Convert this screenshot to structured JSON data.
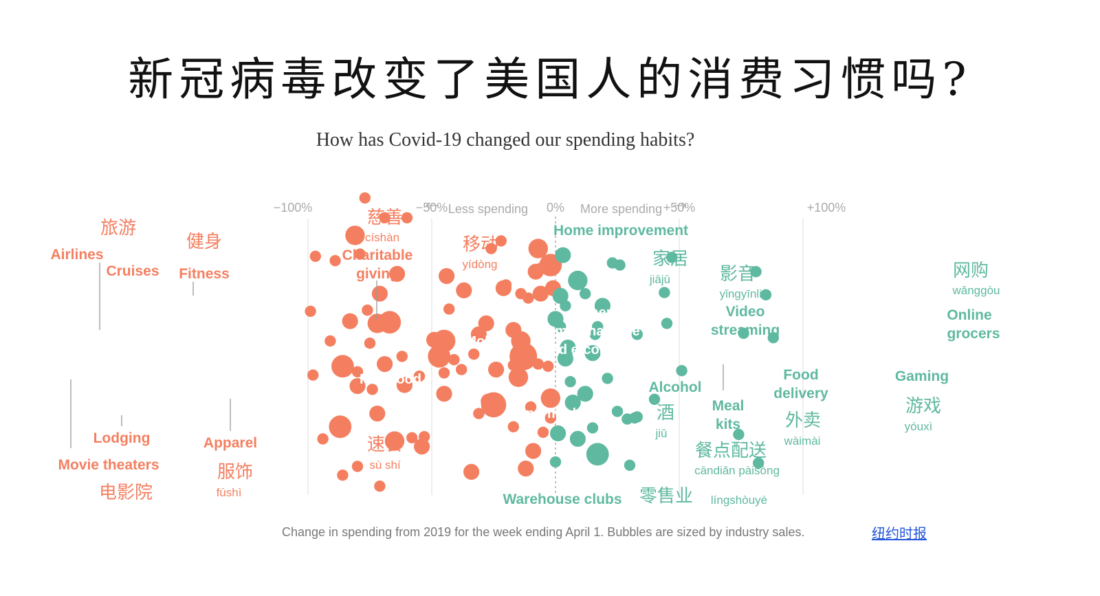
{
  "title": "新冠病毒改变了美国人的消费习惯吗?",
  "subtitle": "How has Covid-19 changed our spending habits?",
  "caption": "Change in spending from 2019 for the week ending April 1. Bubbles are sized by industry sales.",
  "source_link": "纽约时报",
  "colors": {
    "decline": "#f47f60",
    "growth": "#5fb9a0",
    "grid": "#e2e2e2",
    "zero_line": "#aaaaaa"
  },
  "chart_data": {
    "type": "scatter",
    "x_axis": {
      "range": [
        -100,
        100
      ],
      "ticks": [
        "−100%",
        "−50%",
        "0%",
        "+50%",
        "+100%"
      ],
      "tick_values": [
        -100,
        -50,
        0,
        50,
        100
      ]
    },
    "direction_labels": {
      "less": "Less spending",
      "more": "More spending"
    },
    "labels": [
      {
        "en": "Airlines",
        "cn": "旅游",
        "pinyin": ""
      },
      {
        "en": "Cruises",
        "cn": "",
        "pinyin": ""
      },
      {
        "en": "Fitness",
        "cn": "健身",
        "pinyin": ""
      },
      {
        "en": "Lodging",
        "cn": "",
        "pinyin": ""
      },
      {
        "en": "Movie theaters",
        "cn": "电影院",
        "pinyin": ""
      },
      {
        "en": "Apparel",
        "cn": "服饰",
        "pinyin": "fúshì"
      },
      {
        "en": "Charitable giving",
        "cn": "慈善",
        "pinyin": "císhàn"
      },
      {
        "en": "Fast food",
        "cn": "速食",
        "pinyin": "sù shí"
      },
      {
        "en": "Mobile",
        "cn": "移动",
        "pinyin": "yídòng"
      },
      {
        "en": "Home improvement",
        "cn": "家居",
        "pinyin": "jiājū"
      },
      {
        "en": "General merchandise and e-commerce",
        "cn": "",
        "pinyin": ""
      },
      {
        "en": "Supermarkets",
        "cn": "",
        "pinyin": ""
      },
      {
        "en": "Warehouse clubs",
        "cn": "零售业",
        "pinyin": "língshòuyè"
      },
      {
        "en": "Alcohol",
        "cn": "酒",
        "pinyin": "jiǔ"
      },
      {
        "en": "Video streaming",
        "cn": "影音",
        "pinyin": "yǐngyīnliú"
      },
      {
        "en": "Meal kits",
        "cn": "餐点配送",
        "pinyin": "cāndiǎn pàisòng"
      },
      {
        "en": "Food delivery",
        "cn": "外卖",
        "pinyin": "wàimài"
      },
      {
        "en": "Gaming",
        "cn": "游戏",
        "pinyin": "yóuxì"
      },
      {
        "en": "Online grocers",
        "cn": "网购",
        "pinyin": "wǎnggòu"
      }
    ],
    "bubbles": [
      {
        "x": -99,
        "size": 1,
        "y": 0.42
      },
      {
        "x": -98,
        "size": 1,
        "y": -0.16
      },
      {
        "x": -97,
        "size": 1,
        "y": 0.92
      },
      {
        "x": -94,
        "size": 1,
        "y": -0.74
      },
      {
        "x": -91,
        "size": 1,
        "y": 0.15
      },
      {
        "x": -89,
        "size": 1,
        "y": 0.88
      },
      {
        "x": -87,
        "size": 4,
        "y": -0.63
      },
      {
        "x": -86,
        "size": 4,
        "y": -0.08
      },
      {
        "x": -86,
        "size": 1,
        "y": -1.07
      },
      {
        "x": -83,
        "size": 2,
        "y": 0.33
      },
      {
        "x": -81,
        "size": 3,
        "y": 1.11
      },
      {
        "x": -80,
        "size": 1,
        "y": -0.99
      },
      {
        "x": -80,
        "size": 2,
        "y": -0.26
      },
      {
        "x": -80,
        "size": 1,
        "y": -0.13
      },
      {
        "x": -79,
        "size": 1,
        "y": 0.94
      },
      {
        "x": -77,
        "size": 1,
        "y": 1.45
      },
      {
        "x": -76,
        "size": 1,
        "y": 0.43
      },
      {
        "x": -75,
        "size": 1,
        "y": 0.13
      },
      {
        "x": -74,
        "size": 1,
        "y": -0.29
      },
      {
        "x": -72,
        "size": 2,
        "y": -0.51
      },
      {
        "x": -72,
        "size": 3,
        "y": 0.31
      },
      {
        "x": -71,
        "size": 2,
        "y": 0.58
      },
      {
        "x": -71,
        "size": 1,
        "y": -1.17
      },
      {
        "x": -69,
        "size": 2,
        "y": -0.06
      },
      {
        "x": -69,
        "size": 1,
        "y": 1.27
      },
      {
        "x": -67,
        "size": 4,
        "y": 0.32
      },
      {
        "x": -65,
        "size": 3,
        "y": -0.76
      },
      {
        "x": -64,
        "size": 2,
        "y": 0.76
      },
      {
        "x": -62,
        "size": 1,
        "y": 0.01
      },
      {
        "x": -61,
        "size": 2,
        "y": -0.25
      },
      {
        "x": -60,
        "size": 1,
        "y": 1.27
      },
      {
        "x": -58,
        "size": 1,
        "y": -0.73
      },
      {
        "x": -55,
        "size": 1,
        "y": -0.17
      },
      {
        "x": -54,
        "size": 2,
        "y": -0.81
      },
      {
        "x": -53,
        "size": 1,
        "y": -0.72
      },
      {
        "x": -49,
        "size": 2,
        "y": 0.16
      },
      {
        "x": -47,
        "size": 4,
        "y": 0.01
      },
      {
        "x": -45,
        "size": 2,
        "y": -0.33
      },
      {
        "x": -45,
        "size": 4,
        "y": 0.15
      },
      {
        "x": -45,
        "size": 1,
        "y": -0.14
      },
      {
        "x": -44,
        "size": 2,
        "y": 0.74
      },
      {
        "x": -43,
        "size": 1,
        "y": 0.44
      },
      {
        "x": -41,
        "size": 1,
        "y": -0.02
      },
      {
        "x": -38,
        "size": 1,
        "y": -0.11
      },
      {
        "x": -37,
        "size": 2,
        "y": 0.61
      },
      {
        "x": -34,
        "size": 2,
        "y": -1.04
      },
      {
        "x": -33,
        "size": 1,
        "y": 0.03
      },
      {
        "x": -31,
        "size": 2,
        "y": 0.21
      },
      {
        "x": -31,
        "size": 1,
        "y": -0.51
      },
      {
        "x": -28,
        "size": 2,
        "y": 0.31
      },
      {
        "x": -27,
        "size": 2,
        "y": -0.4
      },
      {
        "x": -26,
        "size": 1,
        "y": 0.99
      },
      {
        "x": -25,
        "size": 5,
        "y": -0.43
      },
      {
        "x": -24,
        "size": 2,
        "y": -0.11
      },
      {
        "x": -22,
        "size": 1,
        "y": 1.06
      },
      {
        "x": -21,
        "size": 2,
        "y": 0.63
      },
      {
        "x": -20,
        "size": 1,
        "y": 0.66
      },
      {
        "x": -17,
        "size": 1,
        "y": -0.07
      },
      {
        "x": -17,
        "size": 2,
        "y": 0.25
      },
      {
        "x": -17,
        "size": 1,
        "y": -0.63
      },
      {
        "x": -15,
        "size": 3,
        "y": -0.18
      },
      {
        "x": -14,
        "size": 3,
        "y": 0.15
      },
      {
        "x": -14,
        "size": 1,
        "y": 0.58
      },
      {
        "x": -13,
        "size": 6,
        "y": 0.01
      },
      {
        "x": -12,
        "size": 2,
        "y": -1.01
      },
      {
        "x": -11,
        "size": 1,
        "y": 0.54
      },
      {
        "x": -10,
        "size": 1,
        "y": -0.45
      },
      {
        "x": -9,
        "size": 2,
        "y": -0.85
      },
      {
        "x": -8,
        "size": 2,
        "y": 0.78
      },
      {
        "x": -7,
        "size": 3,
        "y": 0.99
      },
      {
        "x": -7,
        "size": 1,
        "y": -0.06
      },
      {
        "x": -6,
        "size": 1,
        "y": 0.81
      },
      {
        "x": -6,
        "size": 2,
        "y": 0.58
      },
      {
        "x": -5,
        "size": 1,
        "y": -0.68
      },
      {
        "x": -3,
        "size": 1,
        "y": -0.08
      },
      {
        "x": -2,
        "size": 1,
        "y": -0.55
      },
      {
        "x": -2,
        "size": 3,
        "y": -0.37
      },
      {
        "x": -2,
        "size": 4,
        "y": 0.84
      },
      {
        "x": -1,
        "size": 2,
        "y": 0.63
      },
      {
        "x": 0,
        "size": 2,
        "y": 0.35
      },
      {
        "x": 0,
        "size": 1,
        "y": -0.95
      },
      {
        "x": 1,
        "size": 2,
        "y": -0.69
      },
      {
        "x": 2,
        "size": 2,
        "y": 0.56
      },
      {
        "x": 2,
        "size": 1,
        "y": 0.28
      },
      {
        "x": 3,
        "size": 2,
        "y": 0.93
      },
      {
        "x": 4,
        "size": 1,
        "y": 0.47
      },
      {
        "x": 4,
        "size": 2,
        "y": -0.01
      },
      {
        "x": 5,
        "size": 2,
        "y": 0.09
      },
      {
        "x": 6,
        "size": 1,
        "y": -0.22
      },
      {
        "x": 7,
        "size": 2,
        "y": -0.41
      },
      {
        "x": 9,
        "size": 3,
        "y": 0.7
      },
      {
        "x": 9,
        "size": 2,
        "y": -0.74
      },
      {
        "x": 12,
        "size": 2,
        "y": -0.33
      },
      {
        "x": 12,
        "size": 1,
        "y": 0.58
      },
      {
        "x": 15,
        "size": 1,
        "y": -0.64
      },
      {
        "x": 15,
        "size": 2,
        "y": 0.04
      },
      {
        "x": 16,
        "size": 1,
        "y": 0.21
      },
      {
        "x": 17,
        "size": 4,
        "y": -0.88
      },
      {
        "x": 17,
        "size": 1,
        "y": 0.28
      },
      {
        "x": 19,
        "size": 2,
        "y": 0.47
      },
      {
        "x": 21,
        "size": 1,
        "y": -0.19
      },
      {
        "x": 23,
        "size": 1,
        "y": 0.86
      },
      {
        "x": 25,
        "size": 1,
        "y": -0.49
      },
      {
        "x": 26,
        "size": 1,
        "y": 0.84
      },
      {
        "x": 29,
        "size": 1,
        "y": -0.56
      },
      {
        "x": 30,
        "size": 1,
        "y": -0.98
      },
      {
        "x": 32,
        "size": 1,
        "y": -0.55
      },
      {
        "x": 33,
        "size": 1,
        "y": -0.54
      },
      {
        "x": 33,
        "size": 1,
        "y": 0.21
      },
      {
        "x": 40,
        "size": 1,
        "y": -0.38
      },
      {
        "x": 44,
        "size": 1,
        "y": 0.59
      },
      {
        "x": 45,
        "size": 1,
        "y": 0.31
      },
      {
        "x": 47,
        "size": 1,
        "y": 0.91
      },
      {
        "x": 51,
        "size": 1,
        "y": -0.12
      },
      {
        "x": 74,
        "size": 1,
        "y": -0.7
      },
      {
        "x": 76,
        "size": 1,
        "y": 0.22
      },
      {
        "x": 81,
        "size": 1,
        "y": 0.78
      },
      {
        "x": 82,
        "size": 1,
        "y": -0.96
      },
      {
        "x": 85,
        "size": 1,
        "y": 0.57
      },
      {
        "x": 88,
        "size": 1,
        "y": 0.18
      }
    ]
  }
}
